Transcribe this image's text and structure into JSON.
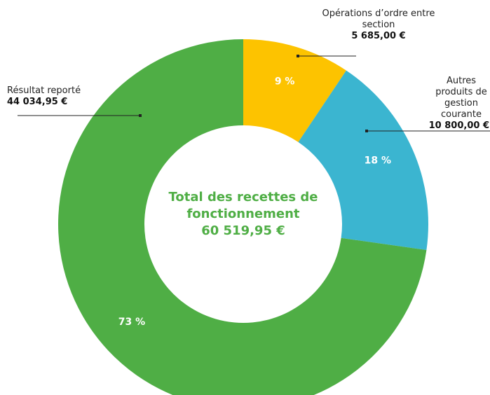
{
  "chart_data": {
    "type": "donut",
    "center_title": "Total des recettes de fonctionnement",
    "total_label": "60 519,95 €",
    "categories": [
      "Opérations d’ordre entre section",
      "Autres produits de gestion courante",
      "Résultat reporté"
    ],
    "values": [
      5685.0,
      10800.0,
      44034.95
    ],
    "value_labels": [
      "5 685,00 €",
      "10 800,00 €",
      "44 034,95 €"
    ],
    "percentages": [
      9,
      18,
      73
    ],
    "percentage_labels": [
      "9 %",
      "18 %",
      "73 %"
    ],
    "colors": [
      "#fdc300",
      "#3bb5d0",
      "#4fae45"
    ],
    "center_color": "#4fae45"
  }
}
